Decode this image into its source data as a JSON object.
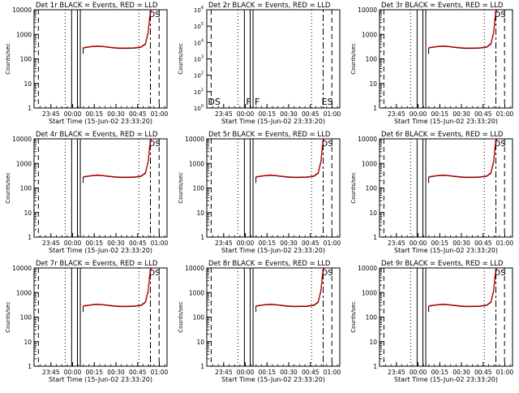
{
  "chart_data": {
    "type": "line",
    "y_scale": "log",
    "ylim": [
      1,
      10000
    ],
    "y_tick_labels": [
      "1",
      "10",
      "100",
      "1000",
      "10000"
    ],
    "y_tick_labels_panel2": [
      "10^0",
      "10^1",
      "10^2",
      "10^3",
      "10^4",
      "10^5",
      "10^6"
    ],
    "x_tick_labels": [
      "23:45",
      "00:00",
      "00:15",
      "00:30",
      "00:45",
      "01:00"
    ],
    "ylabel": "Counts/sec",
    "xlabel": "Start Time (15-Jun-02 23:33:20)",
    "legend": "BLACK = Events, RED = LLD",
    "series_colors": {
      "events": "#000000",
      "lld": "#ff0000"
    },
    "x_minutes": [
      0,
      5,
      10,
      15,
      20,
      25,
      30,
      35,
      40,
      43,
      45,
      46,
      47
    ],
    "events_values": [
      280,
      310,
      330,
      310,
      285,
      270,
      270,
      275,
      300,
      400,
      1200,
      5000,
      9500
    ],
    "lld_values": [
      290,
      320,
      340,
      320,
      295,
      280,
      280,
      285,
      310,
      420,
      1300,
      5500,
      10000
    ],
    "marker_labels": {
      "ds": "DS",
      "f": "F",
      "es": "ES"
    },
    "panels": [
      {
        "title": "Det 1r BLACK = Events, RED = LLD"
      },
      {
        "title": "Det 2r BLACK = Events, RED = LLD"
      },
      {
        "title": "Det 3r BLACK = Events, RED = LLD"
      },
      {
        "title": "Det 4r BLACK = Events, RED = LLD"
      },
      {
        "title": "Det 5r BLACK = Events, RED = LLD"
      },
      {
        "title": "Det 6r BLACK = Events, RED = LLD"
      },
      {
        "title": "Det 7r BLACK = Events, RED = LLD"
      },
      {
        "title": "Det 8r BLACK = Events, RED = LLD"
      },
      {
        "title": "Det 9r BLACK = Events, RED = LLD"
      }
    ]
  }
}
